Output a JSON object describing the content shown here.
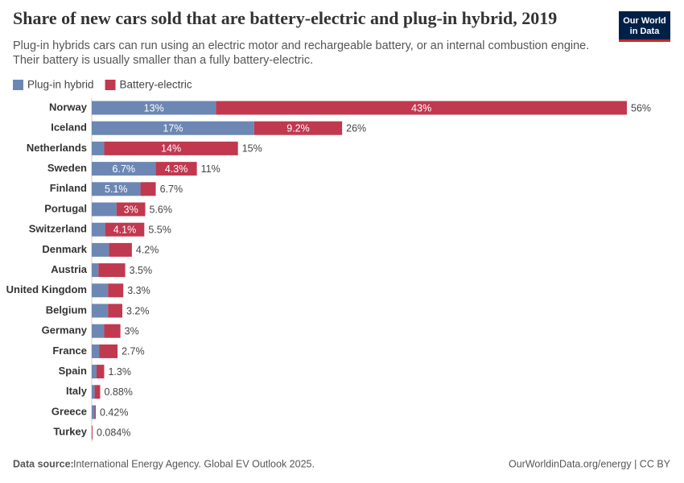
{
  "chart_data": {
    "type": "stacked_barh",
    "title": "Share of new cars sold that are battery-electric and plug-in hybrid, 2019",
    "subtitle": [
      "Plug-in hybrids cars can run using an electric motor and rechargeable battery, or an internal combustion engine.",
      "Their battery is usually smaller than a fully battery-electric."
    ],
    "logo": [
      "Our World",
      "in Data"
    ],
    "source_label": "Data source:",
    "source": "International Energy Agency. Global EV Outlook 2025.",
    "url": "OurWorldinData.org/energy | CC BY",
    "categories": [
      "Norway",
      "Iceland",
      "Netherlands",
      "Sweden",
      "Finland",
      "Portugal",
      "Switzerland",
      "Denmark",
      "Austria",
      "United Kingdom",
      "Belgium",
      "Germany",
      "France",
      "Spain",
      "Italy",
      "Greece",
      "Turkey"
    ],
    "series": [
      {
        "name": "Plug-in hybrid",
        "color": "#6d87b4",
        "values": [
          13,
          17,
          1.3,
          6.7,
          5.1,
          2.6,
          1.4,
          1.8,
          0.7,
          1.7,
          1.7,
          1.3,
          0.8,
          0.5,
          0.3,
          0.3,
          0.004
        ],
        "value_labels": [
          "13%",
          "17%",
          null,
          "6.7%",
          "5.1%",
          null,
          null,
          null,
          null,
          null,
          null,
          null,
          null,
          null,
          null,
          null,
          null
        ]
      },
      {
        "name": "Battery-electric",
        "color": "#c0394f",
        "values": [
          43,
          9.2,
          14,
          4.3,
          1.6,
          3,
          4.1,
          2.4,
          2.8,
          1.6,
          1.5,
          1.7,
          1.9,
          0.8,
          0.58,
          0.12,
          0.08
        ],
        "value_labels": [
          "43%",
          "9.2%",
          "14%",
          "4.3%",
          null,
          "3%",
          "4.1%",
          null,
          null,
          null,
          null,
          null,
          null,
          null,
          null,
          null,
          null
        ]
      }
    ],
    "totals": [
      56,
      26,
      15,
      11,
      6.7,
      5.6,
      5.5,
      4.2,
      3.5,
      3.3,
      3.2,
      3,
      2.7,
      1.3,
      0.88,
      0.42,
      0.084
    ],
    "total_labels": [
      "56%",
      "26%",
      "15%",
      "11%",
      "6.7%",
      "5.6%",
      "5.5%",
      "4.2%",
      "3.5%",
      "3.3%",
      "3.2%",
      "3%",
      "2.7%",
      "1.3%",
      "0.88%",
      "0.42%",
      "0.084%"
    ],
    "xlim": [
      0,
      56
    ]
  }
}
